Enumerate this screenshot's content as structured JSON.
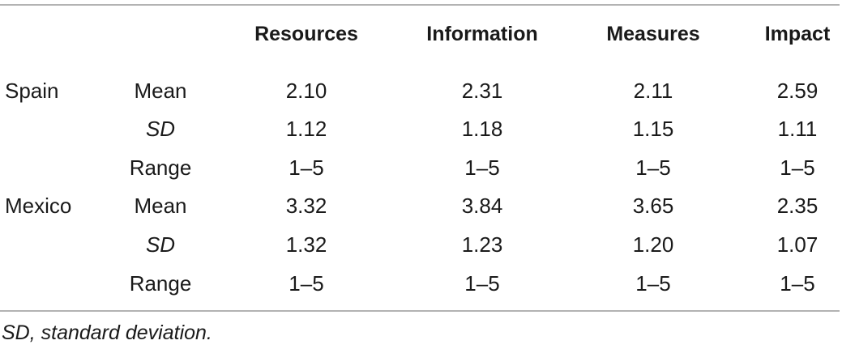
{
  "table": {
    "headers": [
      "Resources",
      "Information",
      "Measures",
      "Impact"
    ],
    "rows": [
      {
        "group": "Spain",
        "stat": "Mean",
        "values": [
          "2.10",
          "2.31",
          "2.11",
          "2.59"
        ]
      },
      {
        "group": "",
        "stat": "SD",
        "values": [
          "1.12",
          "1.18",
          "1.15",
          "1.11"
        ]
      },
      {
        "group": "",
        "stat": "Range",
        "values": [
          "1–5",
          "1–5",
          "1–5",
          "1–5"
        ]
      },
      {
        "group": "Mexico",
        "stat": "Mean",
        "values": [
          "3.32",
          "3.84",
          "3.65",
          "2.35"
        ]
      },
      {
        "group": "",
        "stat": "SD",
        "values": [
          "1.32",
          "1.23",
          "1.20",
          "1.07"
        ]
      },
      {
        "group": "",
        "stat": "Range",
        "values": [
          "1–5",
          "1–5",
          "1–5",
          "1–5"
        ]
      }
    ]
  },
  "footnote": "SD, standard deviation."
}
